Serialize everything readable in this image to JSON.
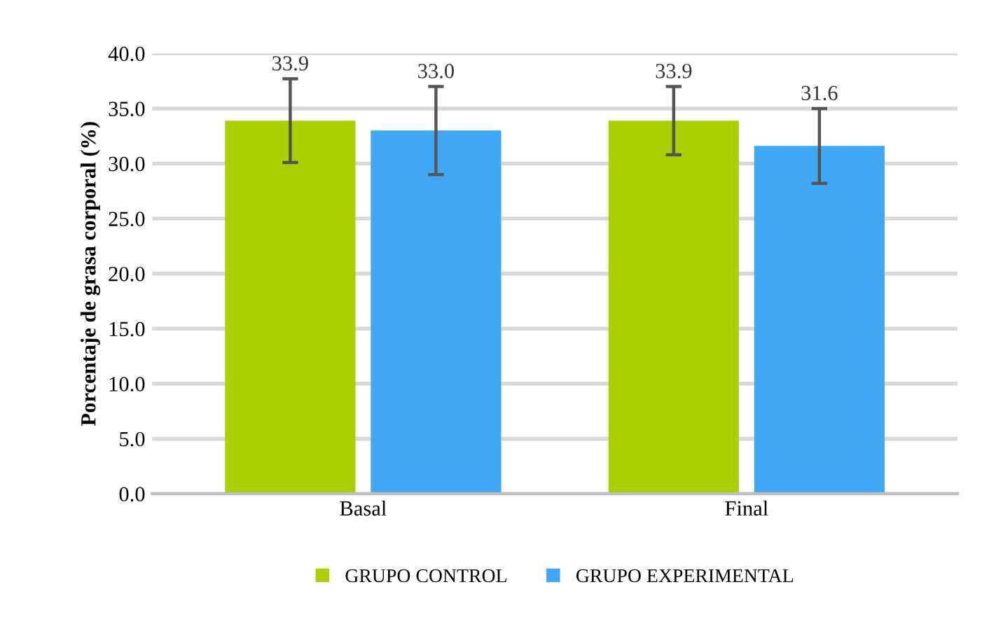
{
  "chart_data": {
    "type": "bar",
    "ylabel": "Porcentaje de grasa corporal (%)",
    "categories": [
      "Basal",
      "Final"
    ],
    "series": [
      {
        "name": "GRUPO CONTROL",
        "color": "#a9d000",
        "values": [
          33.9,
          33.9
        ],
        "value_labels": [
          "33.9",
          "33.9"
        ],
        "errors": [
          3.8,
          3.1
        ]
      },
      {
        "name": "GRUPO EXPERIMENTAL",
        "color": "#3ea8f5",
        "values": [
          33.0,
          31.6
        ],
        "value_labels": [
          "33.0",
          "31.6"
        ],
        "errors": [
          4.0,
          3.4
        ]
      }
    ],
    "ylim": [
      0,
      40
    ],
    "yticks": [
      {
        "value": 0,
        "label": "0.0"
      },
      {
        "value": 5,
        "label": "5.0"
      },
      {
        "value": 10,
        "label": "10.0"
      },
      {
        "value": 15,
        "label": "15.0"
      },
      {
        "value": 20,
        "label": "20.0"
      },
      {
        "value": 25,
        "label": "25.0"
      },
      {
        "value": 30,
        "label": "30.0"
      },
      {
        "value": 35,
        "label": "35.0"
      },
      {
        "value": 40,
        "label": "40.0"
      }
    ],
    "grid": "y",
    "legend": "bottom"
  }
}
